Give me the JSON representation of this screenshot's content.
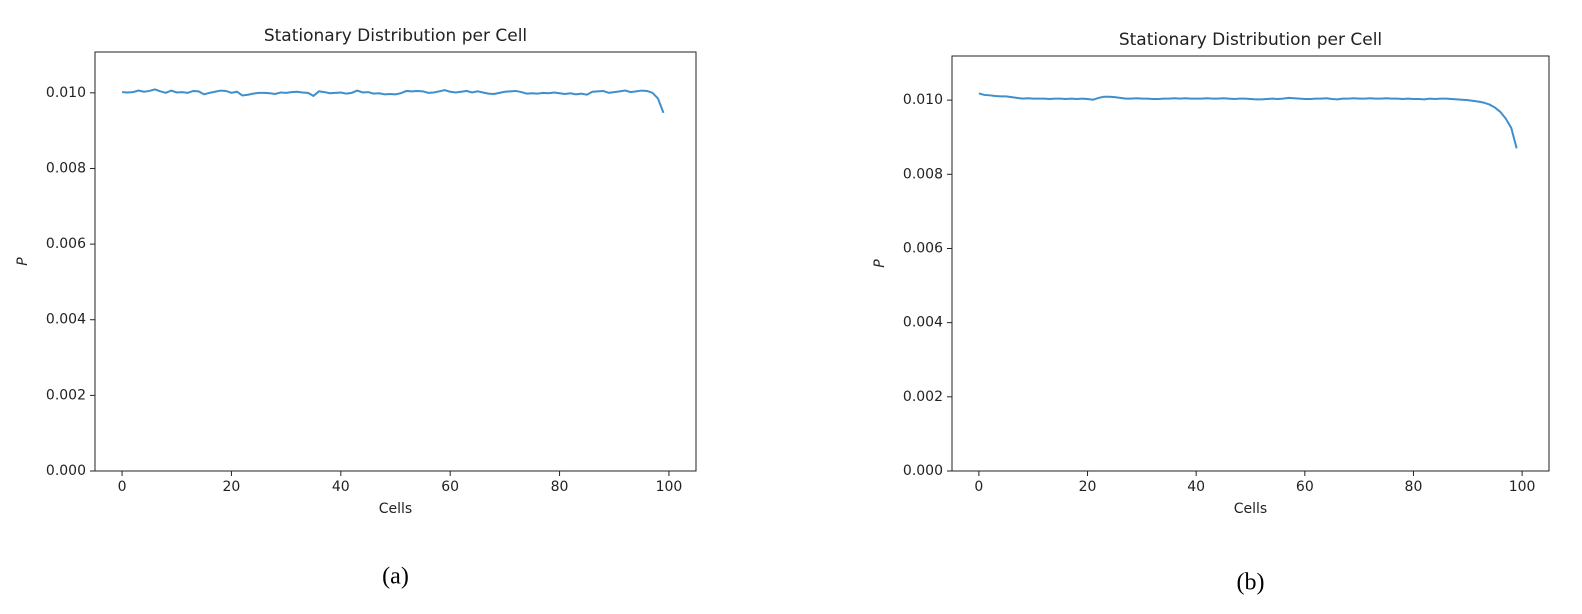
{
  "chart_data": [
    {
      "type": "line",
      "title": "Stationary Distribution per Cell",
      "xlabel": "Cells",
      "ylabel": "P",
      "caption": "(a)",
      "color": "#3f8fcc",
      "x": [
        0,
        1,
        2,
        3,
        4,
        5,
        6,
        7,
        8,
        9,
        10,
        11,
        12,
        13,
        14,
        15,
        16,
        17,
        18,
        19,
        20,
        21,
        22,
        23,
        24,
        25,
        26,
        27,
        28,
        29,
        30,
        31,
        32,
        33,
        34,
        35,
        36,
        37,
        38,
        39,
        40,
        41,
        42,
        43,
        44,
        45,
        46,
        47,
        48,
        49,
        50,
        51,
        52,
        53,
        54,
        55,
        56,
        57,
        58,
        59,
        60,
        61,
        62,
        63,
        64,
        65,
        66,
        67,
        68,
        69,
        70,
        71,
        72,
        73,
        74,
        75,
        76,
        77,
        78,
        79,
        80,
        81,
        82,
        83,
        84,
        85,
        86,
        87,
        88,
        89,
        90,
        91,
        92,
        93,
        94,
        95,
        96,
        97,
        98,
        99
      ],
      "values": [
        0.01002,
        0.01001,
        0.01002,
        0.01006,
        0.01003,
        0.01005,
        0.01009,
        0.01004,
        0.01,
        0.01006,
        0.01001,
        0.01002,
        0.01,
        0.01005,
        0.01004,
        0.00996,
        0.01,
        0.01003,
        0.01006,
        0.01005,
        0.01,
        0.01003,
        0.00993,
        0.00995,
        0.00998,
        0.01,
        0.01,
        0.00999,
        0.00997,
        0.01001,
        0.01,
        0.01002,
        0.01003,
        0.01001,
        0.01,
        0.00992,
        0.01004,
        0.01002,
        0.00999,
        0.01,
        0.01001,
        0.00998,
        0.01,
        0.01006,
        0.01001,
        0.01002,
        0.00998,
        0.00999,
        0.00996,
        0.00997,
        0.00996,
        0.00999,
        0.01005,
        0.01004,
        0.01005,
        0.01004,
        0.01,
        0.01001,
        0.01004,
        0.01007,
        0.01003,
        0.01001,
        0.01003,
        0.01005,
        0.01001,
        0.01004,
        0.01001,
        0.00998,
        0.00997,
        0.01,
        0.01003,
        0.01004,
        0.01005,
        0.01002,
        0.00998,
        0.00999,
        0.00998,
        0.01,
        0.00999,
        0.01001,
        0.00999,
        0.00997,
        0.00999,
        0.00996,
        0.00998,
        0.00995,
        0.01003,
        0.01004,
        0.01005,
        0.01,
        0.01002,
        0.01004,
        0.01006,
        0.01002,
        0.01004,
        0.01006,
        0.01005,
        0.01,
        0.00985,
        0.00947
      ],
      "xlim": [
        -4.95,
        104.95
      ],
      "ylim": [
        0,
        0.01108
      ],
      "xticks": [
        0,
        20,
        40,
        60,
        80,
        100
      ],
      "yticks": [
        {
          "value": 0,
          "label": "0.000"
        },
        {
          "value": 0.002,
          "label": "0.002"
        },
        {
          "value": 0.004,
          "label": "0.004"
        },
        {
          "value": 0.006,
          "label": "0.006"
        },
        {
          "value": 0.008,
          "label": "0.008"
        },
        {
          "value": 0.01,
          "label": "0.010"
        }
      ]
    },
    {
      "type": "line",
      "title": "Stationary Distribution per Cell",
      "xlabel": "Cells",
      "ylabel": "P",
      "caption": "(b)",
      "color": "#3f8fcc",
      "x": [
        0,
        1,
        2,
        3,
        4,
        5,
        6,
        7,
        8,
        9,
        10,
        11,
        12,
        13,
        14,
        15,
        16,
        17,
        18,
        19,
        20,
        21,
        22,
        23,
        24,
        25,
        26,
        27,
        28,
        29,
        30,
        31,
        32,
        33,
        34,
        35,
        36,
        37,
        38,
        39,
        40,
        41,
        42,
        43,
        44,
        45,
        46,
        47,
        48,
        49,
        50,
        51,
        52,
        53,
        54,
        55,
        56,
        57,
        58,
        59,
        60,
        61,
        62,
        63,
        64,
        65,
        66,
        67,
        68,
        69,
        70,
        71,
        72,
        73,
        74,
        75,
        76,
        77,
        78,
        79,
        80,
        81,
        82,
        83,
        84,
        85,
        86,
        87,
        88,
        89,
        90,
        91,
        92,
        93,
        94,
        95,
        96,
        97,
        98,
        99
      ],
      "values": [
        0.01018,
        0.01014,
        0.01013,
        0.01011,
        0.0101,
        0.0101,
        0.01008,
        0.01006,
        0.01004,
        0.01005,
        0.01004,
        0.01004,
        0.01004,
        0.01003,
        0.01004,
        0.01004,
        0.01003,
        0.01004,
        0.01003,
        0.01004,
        0.01003,
        0.01001,
        0.01006,
        0.01009,
        0.01009,
        0.01008,
        0.01006,
        0.01004,
        0.01004,
        0.01005,
        0.01004,
        0.01004,
        0.01003,
        0.01003,
        0.01004,
        0.01004,
        0.01005,
        0.01004,
        0.01005,
        0.01004,
        0.01004,
        0.01004,
        0.01005,
        0.01004,
        0.01004,
        0.01005,
        0.01004,
        0.01003,
        0.01004,
        0.01004,
        0.01003,
        0.01002,
        0.01002,
        0.01003,
        0.01004,
        0.01003,
        0.01004,
        0.01006,
        0.01005,
        0.01004,
        0.01003,
        0.01003,
        0.01004,
        0.01004,
        0.01005,
        0.01003,
        0.01002,
        0.01004,
        0.01004,
        0.01005,
        0.01004,
        0.01004,
        0.01005,
        0.01004,
        0.01004,
        0.01005,
        0.01004,
        0.01004,
        0.01003,
        0.01004,
        0.01003,
        0.01003,
        0.01002,
        0.01004,
        0.01003,
        0.01004,
        0.01004,
        0.01003,
        0.01002,
        0.01001,
        0.01,
        0.00998,
        0.00996,
        0.00993,
        0.00988,
        0.0098,
        0.00968,
        0.0095,
        0.00925,
        0.0087
      ],
      "xlim": [
        -4.95,
        104.95
      ],
      "ylim": [
        0,
        0.01119
      ],
      "xticks": [
        0,
        20,
        40,
        60,
        80,
        100
      ],
      "yticks": [
        {
          "value": 0,
          "label": "0.000"
        },
        {
          "value": 0.002,
          "label": "0.002"
        },
        {
          "value": 0.004,
          "label": "0.004"
        },
        {
          "value": 0.006,
          "label": "0.006"
        },
        {
          "value": 0.008,
          "label": "0.008"
        },
        {
          "value": 0.01,
          "label": "0.010"
        }
      ]
    }
  ]
}
